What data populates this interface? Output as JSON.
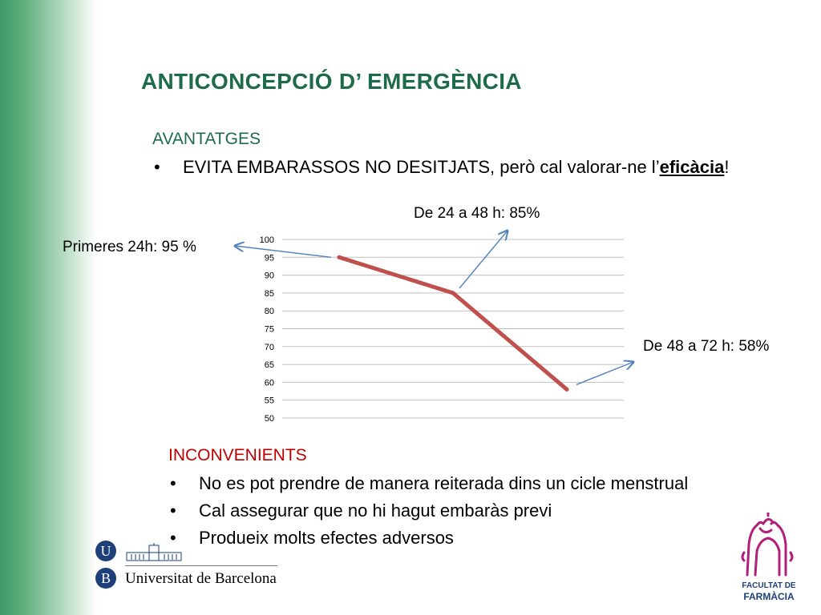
{
  "slide": {
    "title": "ANTICONCEPCIÓ D’ EMERGÈNCIA",
    "advantages": {
      "heading": "AVANTATGES",
      "bullets": [
        {
          "prefix": "EVITA EMBARASSOS NO DESITJATS, però cal valorar-ne l’",
          "emphasis": "eficàcia",
          "suffix": "!"
        }
      ]
    },
    "callouts": {
      "first": "Primeres 24h: 95 %",
      "second": "De 24 a 48 h: 85%",
      "third": "De 48 a 72 h: 58%"
    },
    "inconvenients": {
      "heading": "INCONVENIENTS",
      "bullets": [
        "No es pot prendre de manera reiterada dins un cicle menstrual",
        "Cal assegurar que no hi hagut embaràs previ",
        "Produeix molts efectes adversos"
      ]
    },
    "bullet_glyph": "•",
    "logos": {
      "university_initial_top": "U",
      "university_initial_bottom": "B",
      "university_name": "Universitat de Barcelona",
      "faculty_line1": "FACULTAT DE",
      "faculty_line2": "FARMÀCIA"
    },
    "colors": {
      "title": "#1e6b4a",
      "inconvenients_heading": "#c00000",
      "chart_line": "#c0504d",
      "arrows": "#4f81bd",
      "faculty_logo": "#b0207a",
      "university_blue": "#1d3f7a"
    }
  },
  "chart_data": {
    "type": "line",
    "categories": [
      "",
      "",
      ""
    ],
    "series": [
      {
        "values": [
          95,
          85,
          58
        ]
      }
    ],
    "ylim": [
      50,
      100
    ],
    "yticks": [
      100,
      95,
      90,
      85,
      80,
      75,
      70,
      65,
      60,
      55,
      50
    ],
    "grid": true,
    "legend": "none",
    "title": "",
    "xlabel": "",
    "ylabel": ""
  }
}
